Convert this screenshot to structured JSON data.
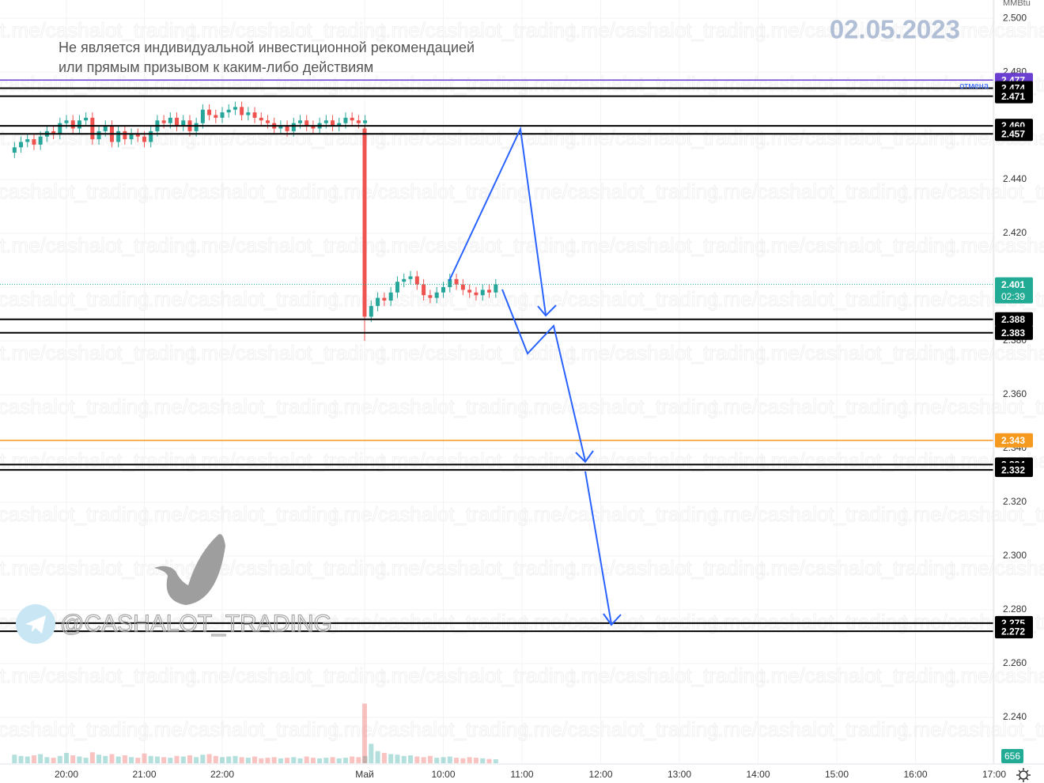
{
  "chart_data": {
    "type": "candlestick",
    "unit": "MMBtu",
    "date": "02.05.2023",
    "disclaimer": [
      "Не является индивидуальной инвестиционной рекомендацией",
      "или прямым призывом к каким-либо действиям"
    ],
    "watermark": "@CASHALOT_TRADING",
    "background_watermark": "t.me/cashalot_trading",
    "colors": {
      "up": "#26a69a",
      "down": "#ef5350"
    },
    "x": [
      "19:20",
      "19:25",
      "19:30",
      "19:35",
      "19:40",
      "19:45",
      "19:50",
      "19:55",
      "20:00",
      "20:05",
      "20:10",
      "20:15",
      "20:20",
      "20:25",
      "20:30",
      "20:35",
      "20:40",
      "20:45",
      "20:50",
      "20:55",
      "21:00",
      "21:05",
      "21:10",
      "21:15",
      "21:20",
      "21:25",
      "21:30",
      "21:35",
      "21:40",
      "21:45",
      "21:50",
      "21:55",
      "22:00",
      "22:05",
      "22:10",
      "22:15",
      "22:20",
      "22:25",
      "22:30",
      "22:35",
      "22:40",
      "22:45",
      "22:50",
      "22:55",
      "23:00",
      "23:05",
      "23:10",
      "23:15",
      "23:20",
      "23:25",
      "23:30",
      "23:35",
      "23:40",
      "23:45",
      "23:50",
      "09:00",
      "09:05",
      "09:10",
      "09:15",
      "09:20",
      "09:25",
      "09:30",
      "09:35",
      "09:40",
      "09:45",
      "09:50",
      "09:55",
      "10:00",
      "10:05",
      "10:10",
      "10:15",
      "10:20",
      "10:25",
      "10:30",
      "10:35",
      "10:40"
    ],
    "open": [
      2.45,
      2.452,
      2.454,
      2.455,
      2.453,
      2.456,
      2.458,
      2.457,
      2.461,
      2.462,
      2.459,
      2.462,
      2.463,
      2.455,
      2.458,
      2.46,
      2.454,
      2.458,
      2.455,
      2.457,
      2.456,
      2.454,
      2.458,
      2.462,
      2.461,
      2.463,
      2.46,
      2.462,
      2.458,
      2.461,
      2.466,
      2.464,
      2.463,
      2.465,
      2.466,
      2.467,
      2.464,
      2.465,
      2.463,
      2.462,
      2.461,
      2.459,
      2.46,
      2.458,
      2.461,
      2.462,
      2.46,
      2.459,
      2.461,
      2.462,
      2.46,
      2.461,
      2.463,
      2.462,
      2.461,
      2.459,
      2.389,
      2.393,
      2.396,
      2.395,
      2.398,
      2.402,
      2.403,
      2.404,
      2.401,
      2.397,
      2.396,
      2.398,
      2.4,
      2.403,
      2.401,
      2.399,
      2.398,
      2.397,
      2.399,
      2.398
    ],
    "high": [
      2.454,
      2.456,
      2.457,
      2.457,
      2.458,
      2.46,
      2.46,
      2.463,
      2.464,
      2.464,
      2.464,
      2.465,
      2.465,
      2.46,
      2.462,
      2.462,
      2.46,
      2.46,
      2.459,
      2.459,
      2.458,
      2.46,
      2.464,
      2.464,
      2.465,
      2.465,
      2.464,
      2.464,
      2.463,
      2.468,
      2.468,
      2.466,
      2.467,
      2.468,
      2.469,
      2.469,
      2.467,
      2.467,
      2.465,
      2.464,
      2.463,
      2.462,
      2.462,
      2.463,
      2.464,
      2.464,
      2.462,
      2.463,
      2.464,
      2.464,
      2.463,
      2.465,
      2.465,
      2.464,
      2.464,
      2.46,
      2.395,
      2.398,
      2.398,
      2.4,
      2.404,
      2.405,
      2.406,
      2.406,
      2.403,
      2.399,
      2.4,
      2.402,
      2.405,
      2.405,
      2.403,
      2.401,
      2.4,
      2.401,
      2.401,
      2.403
    ],
    "low": [
      2.448,
      2.45,
      2.452,
      2.451,
      2.451,
      2.454,
      2.455,
      2.455,
      2.459,
      2.457,
      2.457,
      2.46,
      2.453,
      2.453,
      2.456,
      2.452,
      2.452,
      2.453,
      2.453,
      2.454,
      2.452,
      2.452,
      2.456,
      2.459,
      2.459,
      2.458,
      2.458,
      2.456,
      2.456,
      2.459,
      2.462,
      2.461,
      2.461,
      2.463,
      2.464,
      2.462,
      2.462,
      2.461,
      2.46,
      2.459,
      2.457,
      2.457,
      2.456,
      2.456,
      2.459,
      2.458,
      2.457,
      2.457,
      2.459,
      2.458,
      2.458,
      2.459,
      2.46,
      2.459,
      2.459,
      2.38,
      2.387,
      2.391,
      2.393,
      2.393,
      2.396,
      2.4,
      2.401,
      2.399,
      2.395,
      2.394,
      2.394,
      2.396,
      2.398,
      2.399,
      2.397,
      2.396,
      2.395,
      2.395,
      2.396,
      2.396
    ],
    "close": [
      2.452,
      2.454,
      2.455,
      2.453,
      2.456,
      2.458,
      2.457,
      2.461,
      2.462,
      2.459,
      2.462,
      2.463,
      2.455,
      2.458,
      2.46,
      2.454,
      2.458,
      2.455,
      2.457,
      2.456,
      2.454,
      2.458,
      2.462,
      2.461,
      2.463,
      2.46,
      2.462,
      2.458,
      2.461,
      2.466,
      2.464,
      2.463,
      2.465,
      2.466,
      2.467,
      2.464,
      2.465,
      2.463,
      2.462,
      2.461,
      2.459,
      2.46,
      2.458,
      2.461,
      2.462,
      2.46,
      2.459,
      2.461,
      2.462,
      2.46,
      2.461,
      2.463,
      2.462,
      2.461,
      2.462,
      2.389,
      2.393,
      2.396,
      2.395,
      2.398,
      2.402,
      2.403,
      2.404,
      2.401,
      2.397,
      2.396,
      2.398,
      2.4,
      2.403,
      2.401,
      2.399,
      2.398,
      2.397,
      2.399,
      2.398,
      2.401
    ],
    "volume": [
      1400,
      1200,
      1100,
      1300,
      1500,
      1000,
      900,
      1200,
      1700,
      1300,
      1100,
      900,
      1800,
      1400,
      1200,
      1500,
      1100,
      1300,
      1000,
      900,
      1600,
      1200,
      1100,
      1000,
      900,
      1200,
      1100,
      1300,
      1000,
      1400,
      1500,
      1200,
      1000,
      1100,
      1200,
      1000,
      900,
      1100,
      800,
      900,
      1000,
      800,
      900,
      1000,
      800,
      1100,
      900,
      800,
      900,
      1000,
      800,
      900,
      1100,
      1000,
      1200,
      9800,
      3200,
      2000,
      1700,
      1500,
      1400,
      1200,
      1300,
      1100,
      1000,
      1200,
      900,
      1000,
      1100,
      900,
      800,
      1000,
      900,
      800,
      700,
      656
    ],
    "volume_label": "656",
    "ylim": [
      2.2229,
      2.5068
    ],
    "yticks": [
      {
        "value": 2.5,
        "label": "2.500"
      },
      {
        "value": 2.48,
        "label": "2.480"
      },
      {
        "value": 2.46,
        "label": "2.460"
      },
      {
        "value": 2.44,
        "label": "2.440"
      },
      {
        "value": 2.42,
        "label": "2.420"
      },
      {
        "value": 2.4,
        "label": "2.400"
      },
      {
        "value": 2.38,
        "label": "2.380"
      },
      {
        "value": 2.36,
        "label": "2.360"
      },
      {
        "value": 2.34,
        "label": "2.340"
      },
      {
        "value": 2.32,
        "label": "2.320"
      },
      {
        "value": 2.3,
        "label": "2.300"
      },
      {
        "value": 2.28,
        "label": "2.280"
      },
      {
        "value": 2.26,
        "label": "2.260"
      },
      {
        "value": 2.24,
        "label": "2.240"
      }
    ],
    "xticks": [
      "20:00",
      "21:00",
      "22:00",
      {
        "value": "09:00",
        "label": "Май"
      },
      "10:00",
      "11:00",
      "12:00",
      "13:00",
      "14:00",
      "15:00",
      "16:00",
      "17:00"
    ],
    "grid": true,
    "levels": {
      "values": [
        2.477,
        2.474,
        2.471,
        2.46,
        2.457,
        2.388,
        2.383,
        2.343,
        2.334,
        2.332,
        2.275,
        2.272
      ],
      "value_labels": [
        "2.477",
        "2.474",
        "2.471",
        "2.460",
        "2.457",
        "2.388",
        "2.383",
        "2.343",
        "2.334",
        "2.332",
        "2.275",
        "2.272"
      ],
      "colors": [
        "#6a3fd1",
        "#000000",
        "#000000",
        "#000000",
        "#000000",
        "#000000",
        "#000000",
        "#f59a1e",
        "#000000",
        "#000000",
        "#000000",
        "#000000"
      ],
      "notes": [
        "отмена",
        null,
        null,
        null,
        null,
        null,
        null,
        null,
        null,
        null,
        null,
        null
      ]
    },
    "last_price": {
      "value": 2.401,
      "countdown": "02:39",
      "color": "#22ab94"
    }
  }
}
